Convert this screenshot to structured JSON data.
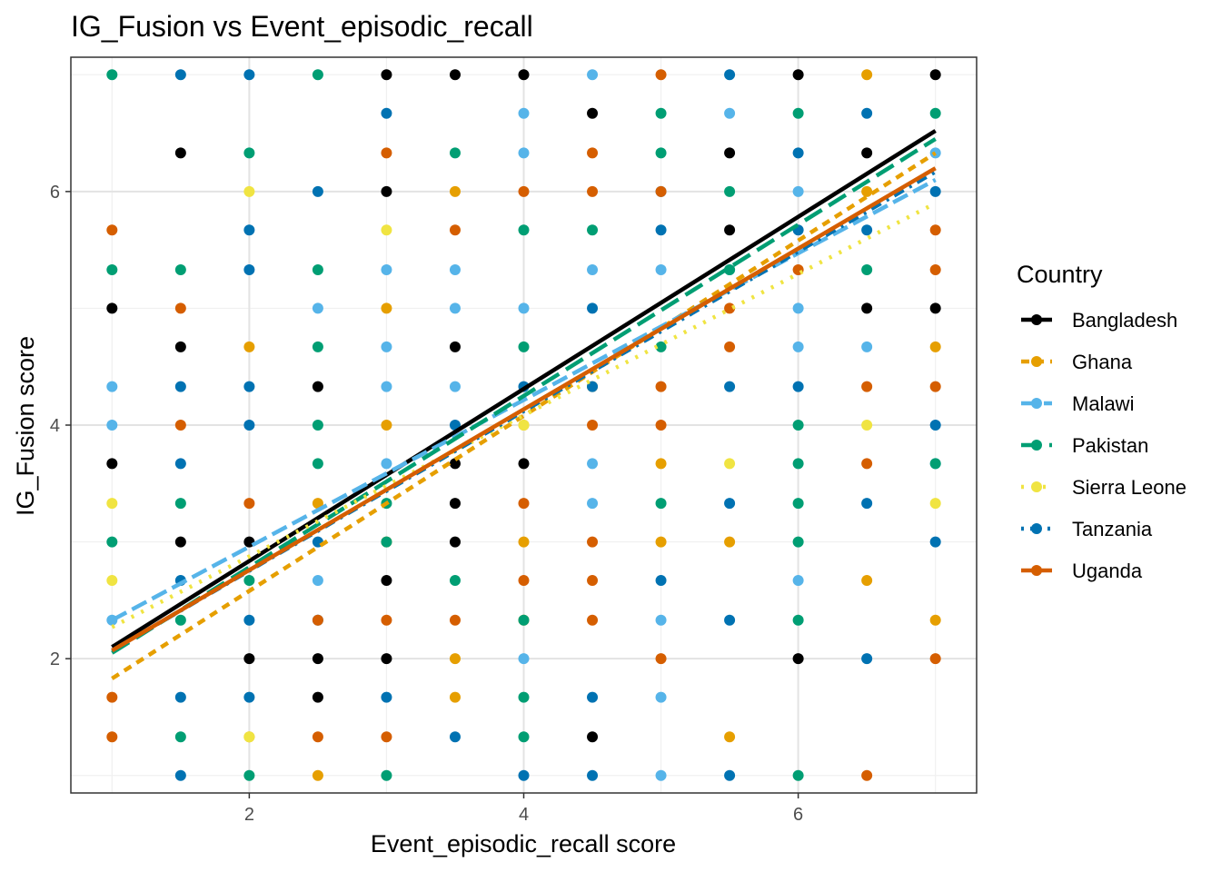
{
  "chart_data": {
    "type": "scatter",
    "title": "IG_Fusion vs Event_episodic_recall",
    "xlabel": "Event_episodic_recall score",
    "ylabel": "IG_Fusion score",
    "xlim": [
      0.7,
      7.3
    ],
    "ylim": [
      0.85,
      7.15
    ],
    "x_ticks": [
      2,
      4,
      6
    ],
    "y_ticks": [
      2,
      4,
      6
    ],
    "grid": true,
    "legend": {
      "title": "Country",
      "position": "right"
    },
    "series": [
      {
        "name": "Bangladesh",
        "color": "#000000",
        "line_style": "solid",
        "fit": {
          "x": [
            1,
            7
          ],
          "y": [
            2.1,
            6.52
          ]
        },
        "points": [
          [
            1.5,
            6.33
          ],
          [
            1,
            5
          ],
          [
            1.5,
            4.67
          ],
          [
            1,
            3.67
          ],
          [
            1.5,
            3
          ],
          [
            2,
            3
          ],
          [
            2,
            2
          ],
          [
            2.5,
            4.33
          ],
          [
            2.5,
            2
          ],
          [
            2.5,
            1.67
          ],
          [
            3,
            7
          ],
          [
            3,
            6
          ],
          [
            3,
            2.67
          ],
          [
            3,
            2
          ],
          [
            3.5,
            7
          ],
          [
            3.5,
            4.67
          ],
          [
            3.5,
            3.67
          ],
          [
            3.5,
            3.33
          ],
          [
            3.5,
            3
          ],
          [
            4,
            7
          ],
          [
            4,
            3.67
          ],
          [
            4.5,
            6.67
          ],
          [
            4.5,
            1.33
          ],
          [
            5.5,
            6.33
          ],
          [
            5.5,
            5.67
          ],
          [
            6,
            7
          ],
          [
            6,
            2
          ],
          [
            6.5,
            6.33
          ],
          [
            6.5,
            5
          ],
          [
            7,
            7
          ],
          [
            7,
            5
          ]
        ]
      },
      {
        "name": "Ghana",
        "color": "#E69F00",
        "line_style": "dashed",
        "fit": {
          "x": [
            1,
            7
          ],
          "y": [
            1.83,
            6.33
          ]
        },
        "points": [
          [
            2,
            4.67
          ],
          [
            2,
            1.33
          ],
          [
            2.5,
            3.33
          ],
          [
            2.5,
            1
          ],
          [
            3,
            5
          ],
          [
            3,
            4
          ],
          [
            3,
            3
          ],
          [
            3.5,
            6
          ],
          [
            3.5,
            2
          ],
          [
            3.5,
            1.67
          ],
          [
            4,
            4
          ],
          [
            4,
            3
          ],
          [
            4,
            2.33
          ],
          [
            4.5,
            4.33
          ],
          [
            5,
            3.67
          ],
          [
            5,
            3
          ],
          [
            5.5,
            3
          ],
          [
            5.5,
            1.33
          ],
          [
            6.5,
            7
          ],
          [
            6.5,
            2.67
          ],
          [
            6.5,
            6
          ],
          [
            7,
            4.67
          ],
          [
            7,
            2.33
          ]
        ]
      },
      {
        "name": "Malawi",
        "color": "#56B4E9",
        "line_style": "longdash",
        "fit": {
          "x": [
            1,
            7
          ],
          "y": [
            2.33,
            6.1
          ]
        },
        "points": [
          [
            1,
            4.33
          ],
          [
            1,
            4
          ],
          [
            1,
            2.33
          ],
          [
            2.5,
            5
          ],
          [
            2.5,
            2.67
          ],
          [
            3,
            5.33
          ],
          [
            3,
            4.67
          ],
          [
            3,
            4.33
          ],
          [
            3,
            3.67
          ],
          [
            3.5,
            5.33
          ],
          [
            3.5,
            5
          ],
          [
            3.5,
            4.33
          ],
          [
            4,
            6.67
          ],
          [
            4,
            6.33
          ],
          [
            4,
            5
          ],
          [
            4,
            2
          ],
          [
            4.5,
            7
          ],
          [
            4.5,
            5.33
          ],
          [
            4.5,
            3.67
          ],
          [
            4.5,
            3.33
          ],
          [
            5,
            5.33
          ],
          [
            5,
            2.33
          ],
          [
            5,
            1.67
          ],
          [
            5,
            1
          ],
          [
            5.5,
            6.67
          ],
          [
            5.5,
            5.33
          ],
          [
            6,
            6
          ],
          [
            6,
            5
          ],
          [
            6,
            4.67
          ],
          [
            6,
            2.67
          ],
          [
            6.5,
            4.67
          ],
          [
            7,
            6.33
          ],
          [
            7,
            3.67
          ]
        ]
      },
      {
        "name": "Pakistan",
        "color": "#009E73",
        "line_style": "longdash2",
        "fit": {
          "x": [
            1,
            7
          ],
          "y": [
            2.05,
            6.45
          ]
        },
        "points": [
          [
            1,
            7
          ],
          [
            1,
            5.33
          ],
          [
            1,
            3
          ],
          [
            1.5,
            5.33
          ],
          [
            1.5,
            3.33
          ],
          [
            1.5,
            2.33
          ],
          [
            1.5,
            1.33
          ],
          [
            2,
            6.33
          ],
          [
            2,
            2.67
          ],
          [
            2,
            1
          ],
          [
            2.5,
            7
          ],
          [
            2.5,
            5.33
          ],
          [
            2.5,
            4.67
          ],
          [
            2.5,
            4
          ],
          [
            2.5,
            3.67
          ],
          [
            3,
            3.33
          ],
          [
            3,
            3
          ],
          [
            3,
            1
          ],
          [
            3.5,
            6.33
          ],
          [
            3.5,
            2.67
          ],
          [
            4,
            5.67
          ],
          [
            4,
            4.67
          ],
          [
            4,
            2.33
          ],
          [
            4,
            1.67
          ],
          [
            4,
            1.33
          ],
          [
            4.5,
            5.67
          ],
          [
            5,
            6.67
          ],
          [
            5,
            6.33
          ],
          [
            5,
            4.67
          ],
          [
            5,
            3.33
          ],
          [
            5.5,
            6
          ],
          [
            5.5,
            5.33
          ],
          [
            6,
            6.67
          ],
          [
            6,
            4
          ],
          [
            6,
            3.67
          ],
          [
            6,
            3.33
          ],
          [
            6,
            3
          ],
          [
            6,
            2.33
          ],
          [
            6,
            1
          ],
          [
            6.5,
            5.33
          ],
          [
            7,
            6.67
          ],
          [
            7,
            3.67
          ]
        ]
      },
      {
        "name": "Sierra Leone",
        "color": "#F0E442",
        "line_style": "dotted",
        "fit": {
          "x": [
            1,
            7
          ],
          "y": [
            2.27,
            5.9
          ]
        },
        "points": [
          [
            1,
            3.33
          ],
          [
            1,
            2.67
          ],
          [
            2,
            6
          ],
          [
            2,
            1.33
          ],
          [
            3,
            5.67
          ],
          [
            4,
            4
          ],
          [
            5.5,
            3.67
          ],
          [
            6.5,
            4
          ],
          [
            7,
            3.33
          ]
        ]
      },
      {
        "name": "Tanzania",
        "color": "#0072B2",
        "line_style": "dotdash",
        "fit": {
          "x": [
            1,
            7
          ],
          "y": [
            2.07,
            6.17
          ]
        },
        "points": [
          [
            1.5,
            7
          ],
          [
            1.5,
            4.33
          ],
          [
            1.5,
            3.67
          ],
          [
            1.5,
            2.67
          ],
          [
            1.5,
            1.67
          ],
          [
            1.5,
            1
          ],
          [
            2,
            7
          ],
          [
            2,
            5.67
          ],
          [
            2,
            5.33
          ],
          [
            2,
            4.33
          ],
          [
            2,
            4
          ],
          [
            2,
            2.33
          ],
          [
            2,
            1.67
          ],
          [
            2.5,
            6
          ],
          [
            2.5,
            3
          ],
          [
            2.5,
            2.33
          ],
          [
            3,
            6.67
          ],
          [
            3,
            1.67
          ],
          [
            3.5,
            4
          ],
          [
            3.5,
            1.33
          ],
          [
            4,
            4.33
          ],
          [
            4,
            1
          ],
          [
            4.5,
            5
          ],
          [
            4.5,
            4.33
          ],
          [
            4.5,
            1.67
          ],
          [
            4.5,
            1
          ],
          [
            5,
            6
          ],
          [
            5,
            5.67
          ],
          [
            5,
            2.67
          ],
          [
            5.5,
            7
          ],
          [
            5.5,
            4.33
          ],
          [
            5.5,
            3.33
          ],
          [
            5.5,
            2.33
          ],
          [
            5.5,
            1
          ],
          [
            6,
            6.33
          ],
          [
            6,
            5.67
          ],
          [
            6,
            4.33
          ],
          [
            6.5,
            6.67
          ],
          [
            6.5,
            5.67
          ],
          [
            6.5,
            3.33
          ],
          [
            6.5,
            2
          ],
          [
            7,
            6
          ],
          [
            7,
            4
          ],
          [
            7,
            3
          ]
        ]
      },
      {
        "name": "Uganda",
        "color": "#D55E00",
        "line_style": "solid",
        "fit": {
          "x": [
            1,
            7
          ],
          "y": [
            2.07,
            6.2
          ]
        },
        "points": [
          [
            1,
            5.67
          ],
          [
            1,
            1.67
          ],
          [
            1,
            1.33
          ],
          [
            1.5,
            5
          ],
          [
            1.5,
            4
          ],
          [
            2,
            3.33
          ],
          [
            2.5,
            2.33
          ],
          [
            2.5,
            1.33
          ],
          [
            3,
            6.33
          ],
          [
            3,
            2.33
          ],
          [
            3,
            1.33
          ],
          [
            3.5,
            5.67
          ],
          [
            3.5,
            2.33
          ],
          [
            4,
            6
          ],
          [
            4,
            3.33
          ],
          [
            4,
            2.67
          ],
          [
            4.5,
            6.33
          ],
          [
            4.5,
            6
          ],
          [
            4.5,
            4
          ],
          [
            4.5,
            3
          ],
          [
            4.5,
            2.67
          ],
          [
            4.5,
            2.33
          ],
          [
            5,
            7
          ],
          [
            5,
            6
          ],
          [
            5,
            4.33
          ],
          [
            5,
            4
          ],
          [
            5,
            2
          ],
          [
            5.5,
            5
          ],
          [
            5.5,
            4.67
          ],
          [
            6,
            5.33
          ],
          [
            6.5,
            4.33
          ],
          [
            6.5,
            3.67
          ],
          [
            6.5,
            1
          ],
          [
            7,
            5.67
          ],
          [
            7,
            5.33
          ],
          [
            7,
            4.33
          ],
          [
            7,
            2
          ]
        ]
      }
    ]
  }
}
